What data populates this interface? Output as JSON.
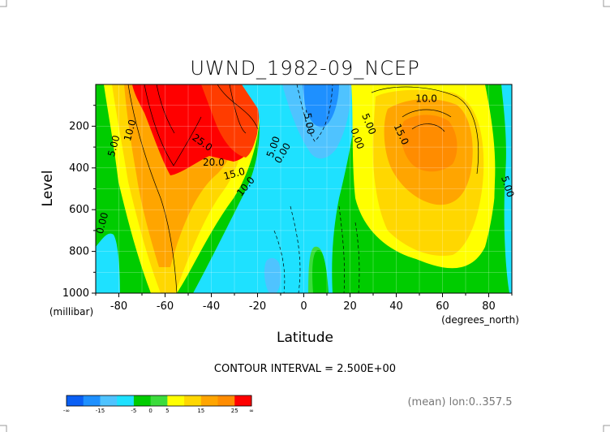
{
  "chart_data": {
    "type": "contour",
    "title": "UWND_1982-09_NCEP",
    "xlabel": "Latitude",
    "ylabel": "Level",
    "x_unit": "(degrees_north)",
    "y_unit": "(millibar)",
    "xlim": [
      -90,
      90
    ],
    "ylim": [
      0,
      1000
    ],
    "y_inverted": true,
    "x_ticks": [
      -80,
      -60,
      -40,
      -20,
      0,
      20,
      40,
      60,
      80
    ],
    "x_tick_labels": [
      "-80",
      "-60",
      "-40",
      "-20",
      "0",
      "20",
      "40",
      "60",
      "80"
    ],
    "y_ticks": [
      200,
      400,
      600,
      800,
      1000
    ],
    "y_tick_labels": [
      "200",
      "400",
      "600",
      "800",
      "1000"
    ],
    "contour_interval_text": "CONTOUR INTERVAL = 2.500E+00",
    "contour_interval": 2.5,
    "averaging_text": "(mean) lon:0..357.5",
    "grid": true,
    "contour_labels": [
      {
        "text": "10.0",
        "lat": 53,
        "level": 70,
        "rot": 0
      },
      {
        "text": "15.0",
        "lat": 42,
        "level": 240,
        "rot": 65
      },
      {
        "text": "5.00",
        "lat": 28,
        "level": 190,
        "rot": 68
      },
      {
        "text": "0.00",
        "lat": 23,
        "level": 260,
        "rot": 70
      },
      {
        "text": "5.00",
        "lat": 88,
        "level": 490,
        "rot": 72
      },
      {
        "text": "-5.00",
        "lat": 2,
        "level": 180,
        "rot": 80
      },
      {
        "text": "5.00",
        "lat": -13,
        "level": 300,
        "rot": -70
      },
      {
        "text": "0.00",
        "lat": -9,
        "level": 330,
        "rot": -60
      },
      {
        "text": "10.0",
        "lat": -25,
        "level": 490,
        "rot": -50
      },
      {
        "text": "15.0",
        "lat": -30,
        "level": 430,
        "rot": -15
      },
      {
        "text": "20.0",
        "lat": -39,
        "level": 375,
        "rot": 0
      },
      {
        "text": "25.0",
        "lat": -44,
        "level": 280,
        "rot": 35
      },
      {
        "text": "10.0",
        "lat": -75,
        "level": 220,
        "rot": -75
      },
      {
        "text": "5.00",
        "lat": -82,
        "level": 295,
        "rot": -75
      },
      {
        "text": "0.00",
        "lat": -87,
        "level": 665,
        "rot": -75
      }
    ],
    "colorbar": {
      "colors": [
        "#0a5ff4",
        "#1e90ff",
        "#4fc3ff",
        "#1ee1ff",
        "#00cc00",
        "#3cdc3c",
        "#ffff00",
        "#ffd700",
        "#ffa500",
        "#ff8c00",
        "#ff0000"
      ],
      "tick_labels": [
        "-∞",
        "-15",
        "-5",
        "0",
        "5",
        "15",
        "25",
        "∞"
      ],
      "tick_positions": [
        0,
        2,
        4,
        5,
        6,
        8,
        10,
        11
      ]
    }
  }
}
